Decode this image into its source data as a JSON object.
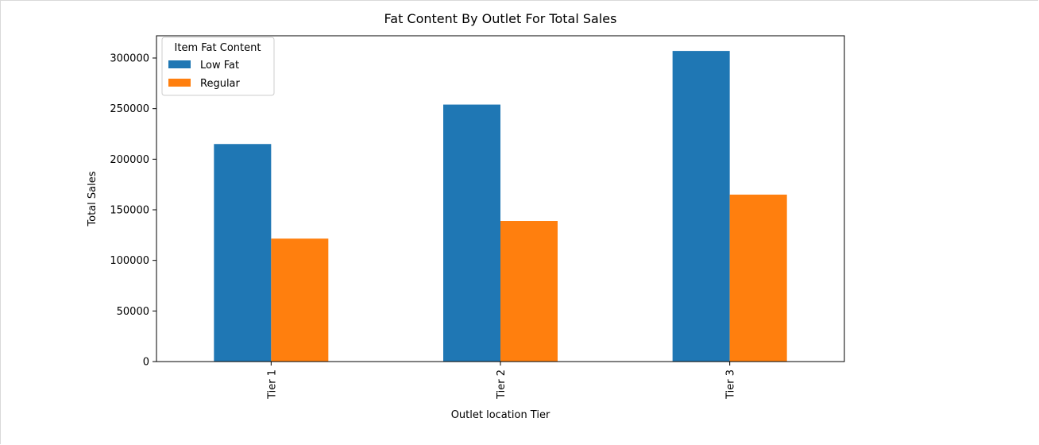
{
  "chart_data": {
    "type": "bar",
    "title": "Fat Content By Outlet For Total Sales",
    "xlabel": "Outlet location Tier",
    "ylabel": "Total Sales",
    "categories": [
      "Tier 1",
      "Tier 2",
      "Tier 3"
    ],
    "series": [
      {
        "name": "Low Fat",
        "color": "#1f77b4",
        "values": [
          215000,
          254000,
          307000
        ]
      },
      {
        "name": "Regular",
        "color": "#ff7f0e",
        "values": [
          121500,
          139000,
          165000
        ]
      }
    ],
    "ylim": [
      0,
      322000
    ],
    "yticks": [
      0,
      50000,
      100000,
      150000,
      200000,
      250000,
      300000
    ],
    "ytick_labels": [
      "0",
      "50000",
      "100000",
      "150000",
      "200000",
      "250000",
      "300000"
    ],
    "legend": {
      "title": "Item Fat Content",
      "position": "top-left"
    },
    "grid": false
  }
}
